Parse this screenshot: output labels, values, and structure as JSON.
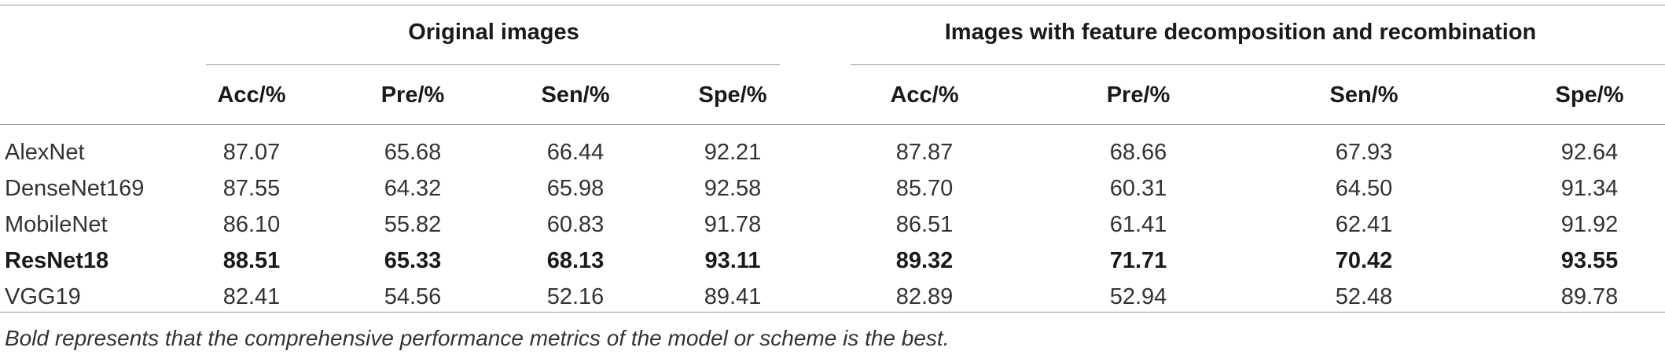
{
  "table": {
    "groups": [
      {
        "title": "Original images"
      },
      {
        "title": "Images with feature decomposition and recombination"
      }
    ],
    "column_headers": [
      "Acc/%",
      "Pre/%",
      "Sen/%",
      "Spe/%",
      "Acc/%",
      "Pre/%",
      "Sen/%",
      "Spe/%"
    ],
    "rows": [
      {
        "label": "AlexNet",
        "bold": false,
        "values": [
          "87.07",
          "65.68",
          "66.44",
          "92.21",
          "87.87",
          "68.66",
          "67.93",
          "92.64"
        ]
      },
      {
        "label": "DenseNet169",
        "bold": false,
        "values": [
          "87.55",
          "64.32",
          "65.98",
          "92.58",
          "85.70",
          "60.31",
          "64.50",
          "91.34"
        ]
      },
      {
        "label": "MobileNet",
        "bold": false,
        "values": [
          "86.10",
          "55.82",
          "60.83",
          "91.78",
          "86.51",
          "61.41",
          "62.41",
          "91.92"
        ]
      },
      {
        "label": "ResNet18",
        "bold": true,
        "values": [
          "88.51",
          "65.33",
          "68.13",
          "93.11",
          "89.32",
          "71.71",
          "70.42",
          "93.55"
        ]
      },
      {
        "label": "VGG19",
        "bold": false,
        "values": [
          "82.41",
          "54.56",
          "52.16",
          "89.41",
          "82.89",
          "52.94",
          "52.48",
          "89.78"
        ]
      }
    ],
    "footnote": "Bold represents that the comprehensive performance metrics of the model or scheme is the best."
  }
}
